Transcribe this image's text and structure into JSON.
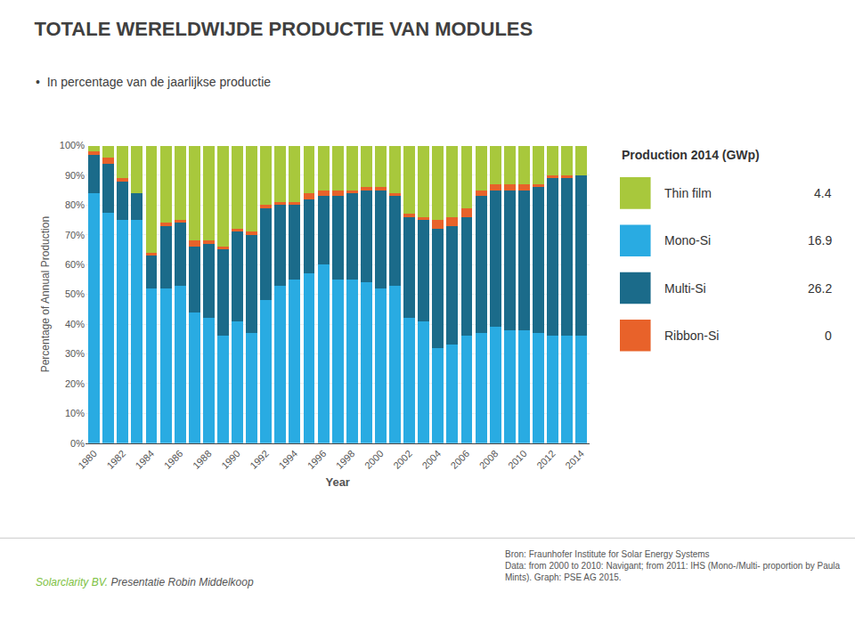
{
  "chart_data": {
    "type": "bar",
    "stacked": true,
    "title": "TOTALE WERELDWIJDE PRODUCTIE VAN MODULES",
    "subtitle": "•  In percentage van de jaarlijkse productie",
    "xlabel": "Year",
    "ylabel": "Percentage of Annual Production",
    "x": [
      1980,
      1981,
      1982,
      1983,
      1984,
      1985,
      1986,
      1987,
      1988,
      1989,
      1990,
      1991,
      1992,
      1993,
      1994,
      1995,
      1996,
      1997,
      1998,
      1999,
      2000,
      2001,
      2002,
      2003,
      2004,
      2005,
      2006,
      2007,
      2008,
      2009,
      2010,
      2011,
      2012,
      2013,
      2014
    ],
    "xlim": [
      1979.4,
      2014.6
    ],
    "xticks": [
      1980,
      1982,
      1984,
      1986,
      1988,
      1990,
      1992,
      1994,
      1996,
      1998,
      2000,
      2002,
      2004,
      2006,
      2008,
      2010,
      2012,
      2014
    ],
    "ylim": [
      0,
      100
    ],
    "yticks": [
      {
        "value": 0,
        "label": "0%"
      },
      {
        "value": 10,
        "label": "10%"
      },
      {
        "value": 20,
        "label": "20%"
      },
      {
        "value": 30,
        "label": "30%"
      },
      {
        "value": 40,
        "label": "40%"
      },
      {
        "value": 50,
        "label": "50%"
      },
      {
        "value": 60,
        "label": "60%"
      },
      {
        "value": 70,
        "label": "70%"
      },
      {
        "value": 80,
        "label": "80%"
      },
      {
        "value": 90,
        "label": "90%"
      },
      {
        "value": 100,
        "label": "100%"
      }
    ],
    "grid": true,
    "series": [
      {
        "name": "Mono-Si",
        "color": "#29ABE2",
        "production_2014": 16.9,
        "values": [
          84,
          77.55102040816327,
          75,
          75,
          52,
          52,
          53,
          44,
          42,
          36,
          41,
          37,
          48,
          53,
          55,
          57,
          60,
          55,
          55,
          54,
          52,
          53,
          42,
          41,
          32,
          33,
          36,
          37,
          39,
          38,
          38,
          37,
          36,
          36,
          36
        ]
      },
      {
        "name": "Multi-Si",
        "color": "#1B6B8A",
        "production_2014": 26.2,
        "values": [
          13,
          16.3265306122449,
          13,
          9,
          11,
          21,
          21,
          22,
          25,
          29,
          30,
          33,
          31,
          27,
          25,
          25,
          23,
          28,
          29,
          31,
          33,
          30,
          34,
          34,
          40,
          40,
          40,
          46,
          46,
          47,
          47,
          49,
          53,
          53,
          54
        ]
      },
      {
        "name": "Ribbon-Si",
        "color": "#E8622A",
        "production_2014": 0,
        "values": [
          1,
          2.0408163265306123,
          1,
          0,
          1,
          1,
          1,
          2,
          1,
          1,
          1,
          1,
          1,
          1,
          1,
          2,
          2,
          2,
          1,
          1,
          1,
          1,
          1,
          1,
          3,
          3,
          3,
          2,
          2,
          2,
          2,
          1,
          1,
          1,
          0
        ]
      },
      {
        "name": "Thin film",
        "color": "#A8C83C",
        "production_2014": 4.4,
        "values": [
          2,
          4.081632653061225,
          11,
          16,
          36,
          26,
          25,
          32,
          32,
          34,
          28,
          29,
          20,
          19,
          19,
          16,
          15,
          15,
          15,
          14,
          14,
          16,
          23,
          24,
          25,
          24,
          21,
          15,
          13,
          13,
          13,
          13,
          10,
          10,
          10
        ]
      }
    ],
    "legend_title": "Production 2014 (GWp)",
    "legend_order": [
      "Thin film",
      "Mono-Si",
      "Multi-Si",
      "Ribbon-Si"
    ],
    "annotations": [
      {
        "text": "Solarclarity BV.",
        "color": "#7DC142"
      },
      {
        "text": "Presentatie Robin Middelkoop"
      },
      {
        "text": "Bron: Fraunhofer Institute for Solar Energy Systems\nData: from 2000 to 2010: Navigant; from 2011: IHS (Mono-/Multi- proportion by Paula\nMints). Graph: PSE AG 2015."
      }
    ]
  }
}
